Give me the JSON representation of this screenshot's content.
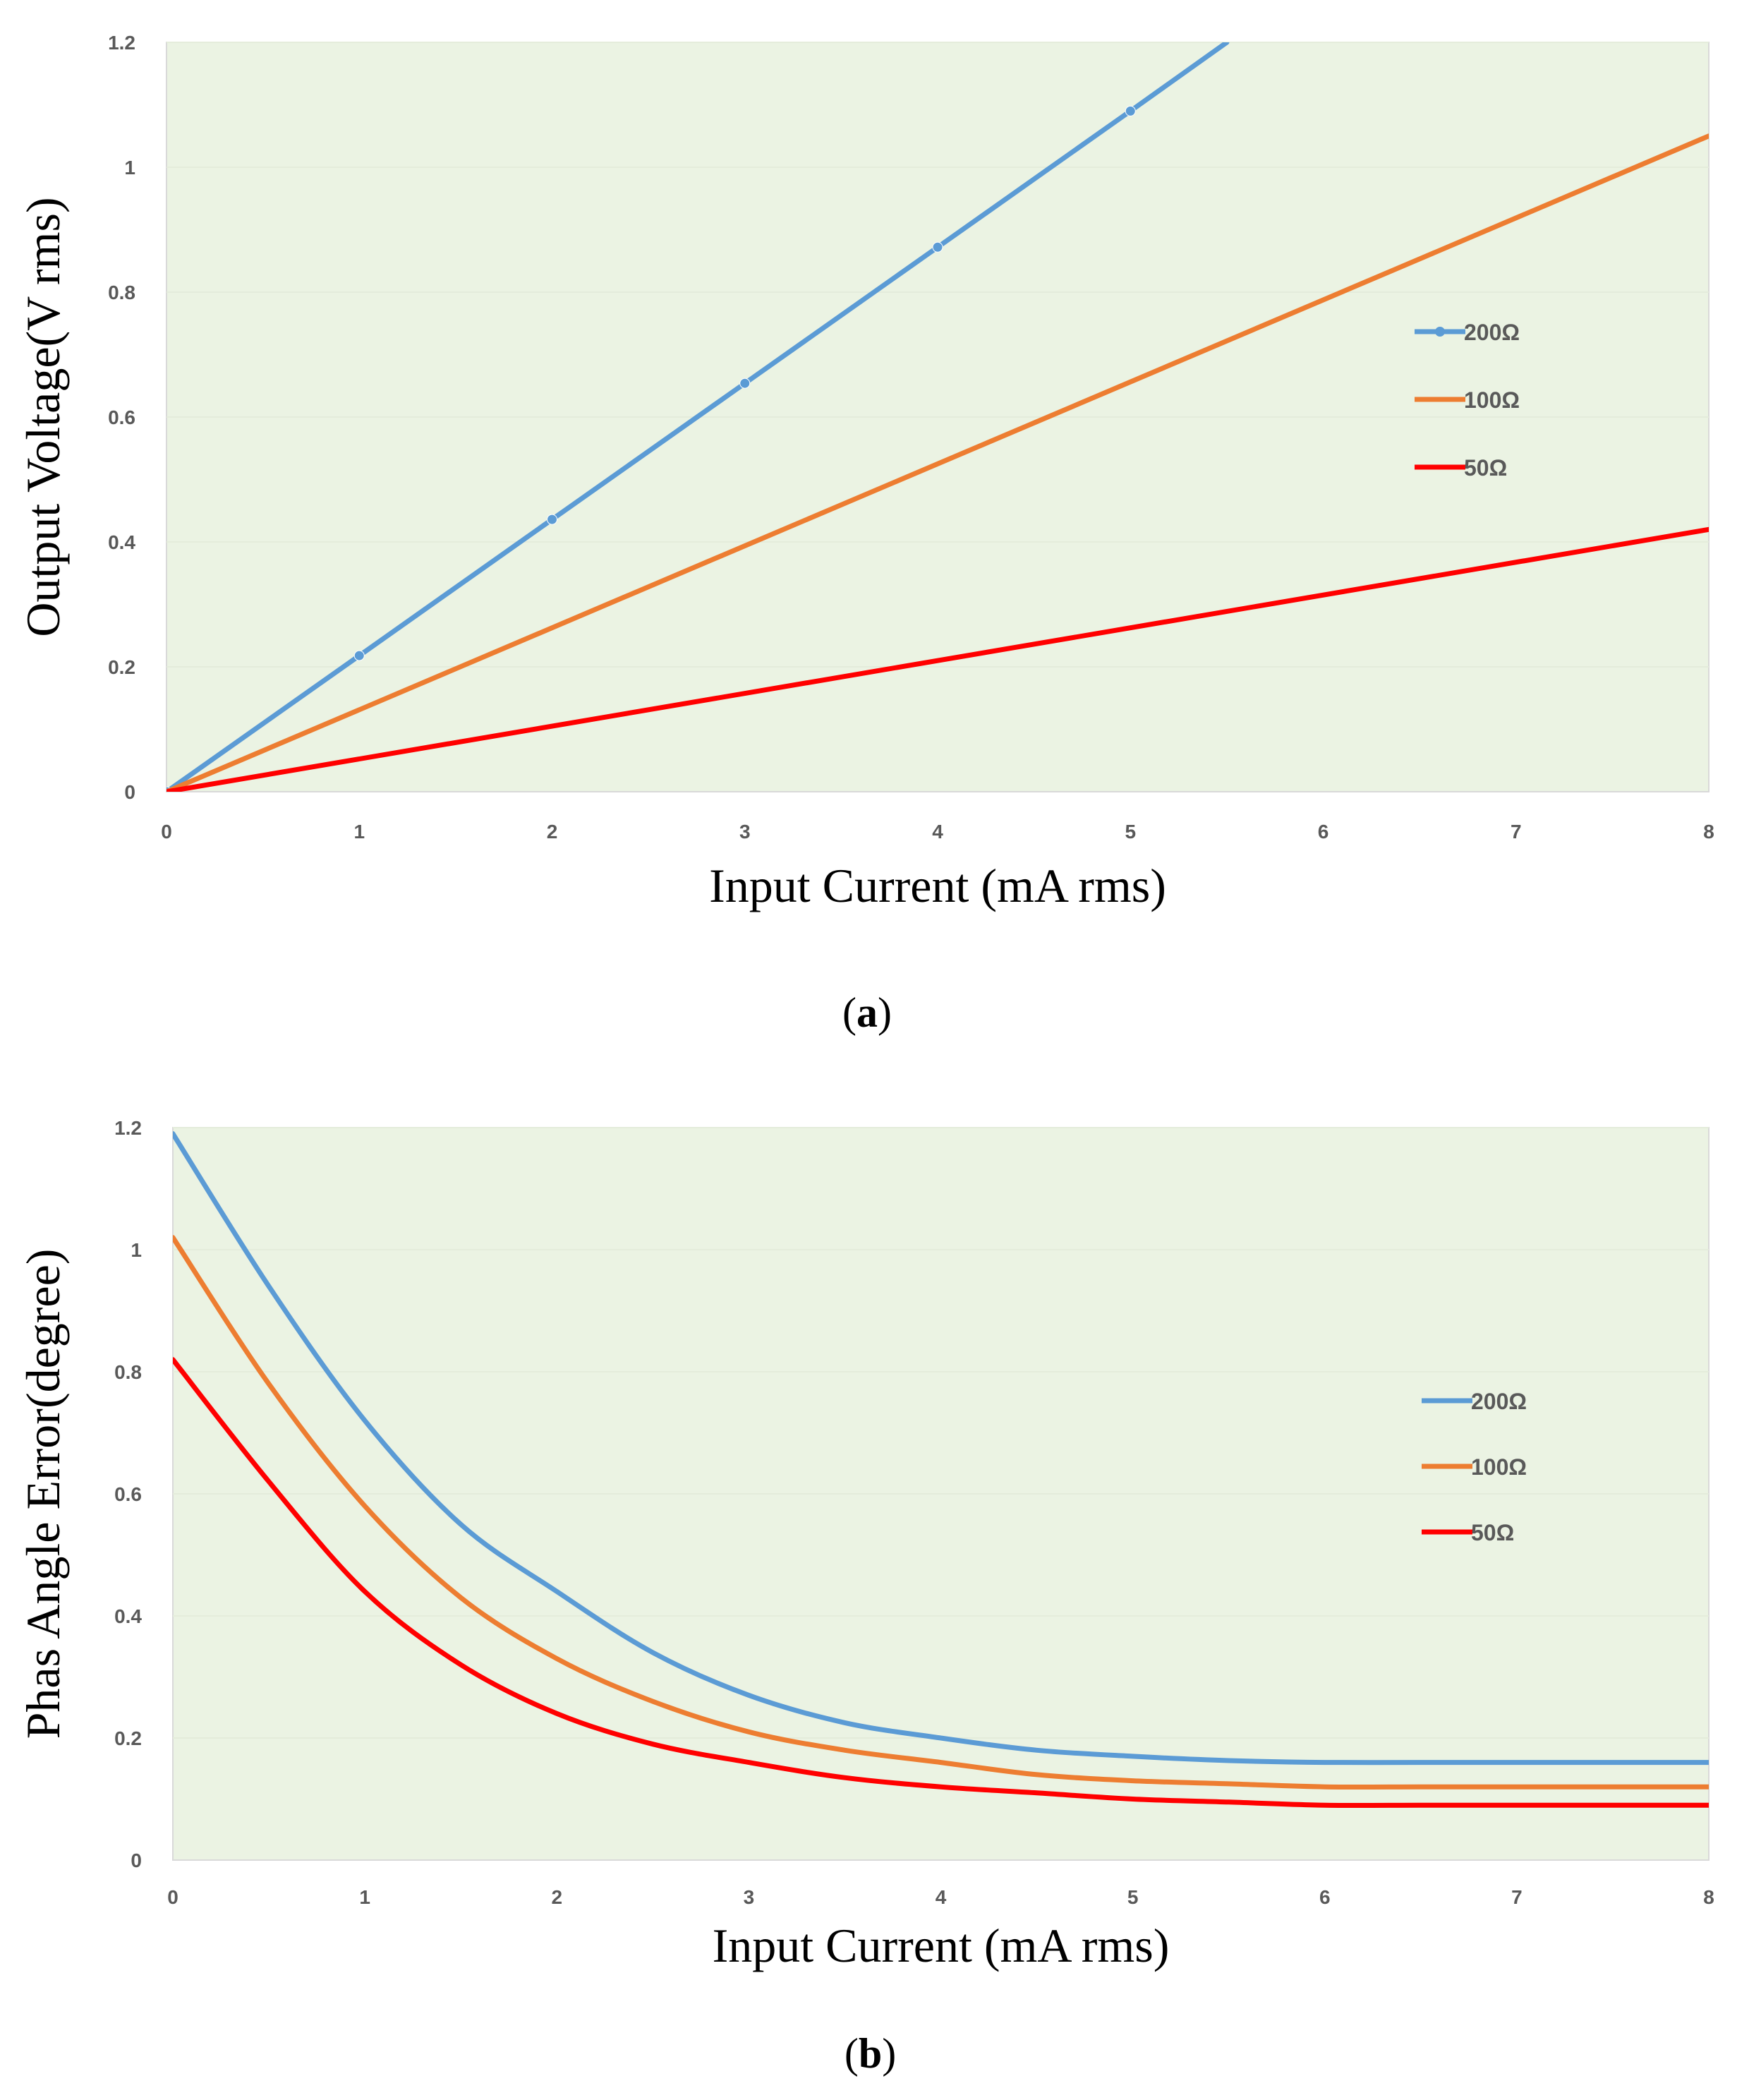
{
  "chart_data": [
    {
      "type": "line",
      "panel_label": "a",
      "title": "",
      "xlabel": "Input Current (mA rms)",
      "ylabel": "Output Voltage(V rms)",
      "xlim": [
        0,
        8
      ],
      "ylim": [
        0,
        1.2
      ],
      "xticks": [
        "0",
        "1",
        "2",
        "3",
        "4",
        "5",
        "6",
        "7",
        "8"
      ],
      "yticks": [
        "0",
        "0.2",
        "0.4",
        "0.6",
        "0.8",
        "1",
        "1.2"
      ],
      "background": "#ebf3e3",
      "grid": true,
      "legend_position": "right",
      "series": [
        {
          "name": "200Ω",
          "color": "#5b9bd5",
          "markers": true,
          "x": [
            0,
            1,
            2,
            3,
            4,
            5,
            5.5
          ],
          "y": [
            0,
            0.218,
            0.436,
            0.654,
            0.872,
            1.09,
            1.2
          ]
        },
        {
          "name": "100Ω",
          "color": "#ed7d31",
          "markers": false,
          "x": [
            0,
            8
          ],
          "y": [
            0,
            1.05
          ]
        },
        {
          "name": "50Ω",
          "color": "#ff0000",
          "markers": false,
          "x": [
            0,
            8
          ],
          "y": [
            0,
            0.42
          ]
        }
      ]
    },
    {
      "type": "line",
      "panel_label": "b",
      "title": "",
      "xlabel": "Input Current (mA rms)",
      "ylabel": "Phas Angle Error(degree)",
      "xlim": [
        0,
        8
      ],
      "ylim": [
        0,
        1.2
      ],
      "xticks": [
        "0",
        "1",
        "2",
        "3",
        "4",
        "5",
        "6",
        "7",
        "8"
      ],
      "yticks": [
        "0",
        "0.2",
        "0.4",
        "0.6",
        "0.8",
        "1",
        "1.2"
      ],
      "background": "#ebf3e3",
      "grid": true,
      "legend_position": "right",
      "series": [
        {
          "name": "200Ω",
          "color": "#5b9bd5",
          "markers": false,
          "x": [
            0,
            0.5,
            1,
            1.5,
            2,
            2.5,
            3,
            3.5,
            4,
            4.5,
            5,
            5.5,
            6,
            6.5,
            7,
            7.5,
            8
          ],
          "y": [
            1.19,
            0.94,
            0.72,
            0.55,
            0.44,
            0.34,
            0.27,
            0.225,
            0.2,
            0.18,
            0.17,
            0.163,
            0.16,
            0.16,
            0.16,
            0.16,
            0.16
          ]
        },
        {
          "name": "100Ω",
          "color": "#ed7d31",
          "markers": false,
          "x": [
            0,
            0.5,
            1,
            1.5,
            2,
            2.5,
            3,
            3.5,
            4,
            4.5,
            5,
            5.5,
            6,
            6.5,
            7,
            7.5,
            8
          ],
          "y": [
            1.02,
            0.78,
            0.58,
            0.43,
            0.33,
            0.26,
            0.21,
            0.18,
            0.16,
            0.14,
            0.13,
            0.125,
            0.12,
            0.12,
            0.12,
            0.12,
            0.12
          ]
        },
        {
          "name": "50Ω",
          "color": "#ff0000",
          "markers": false,
          "x": [
            0,
            0.5,
            1,
            1.5,
            2,
            2.5,
            3,
            3.5,
            4,
            4.5,
            5,
            5.5,
            6,
            6.5,
            7,
            7.5,
            8
          ],
          "y": [
            0.82,
            0.62,
            0.44,
            0.32,
            0.24,
            0.19,
            0.16,
            0.135,
            0.12,
            0.11,
            0.1,
            0.095,
            0.09,
            0.09,
            0.09,
            0.09,
            0.09
          ]
        }
      ]
    }
  ]
}
